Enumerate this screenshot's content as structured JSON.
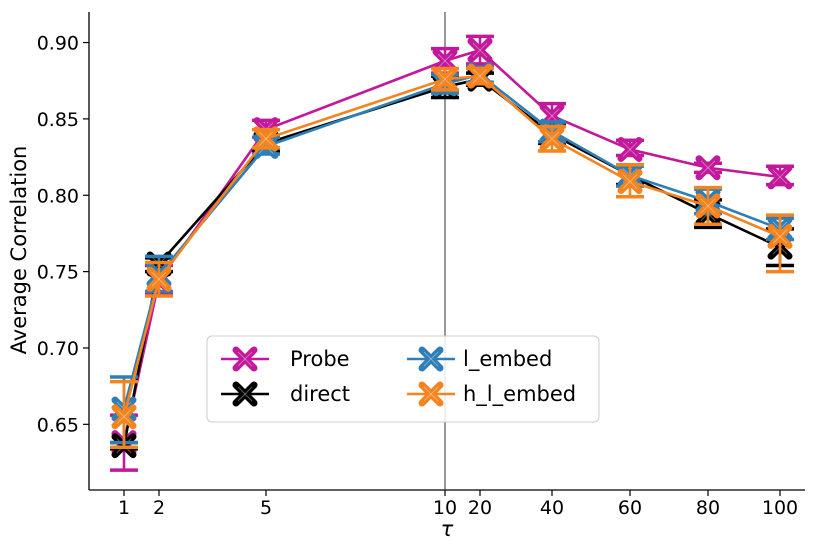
{
  "chart_data": {
    "type": "line",
    "title": "",
    "xlabel": "τ",
    "ylabel": "Average Correlation",
    "ylim": [
      0.607,
      0.92
    ],
    "x_ticks": [
      "1",
      "2",
      "5",
      "10",
      "20",
      "40",
      "60",
      "80",
      "100"
    ],
    "y_ticks": [
      0.65,
      0.7,
      0.75,
      0.8,
      0.85,
      0.9
    ],
    "y_tick_labels": [
      "0.65",
      "0.70",
      "0.75",
      "0.80",
      "0.85",
      "0.90"
    ],
    "vertical_divider_after": "10",
    "legend_position": "lower-center",
    "series": [
      {
        "name": "Probe",
        "color": "#c2189b",
        "values": [
          0.638,
          0.744,
          0.843,
          0.888,
          0.895,
          0.852,
          0.83,
          0.818,
          0.812
        ],
        "err_low": [
          0.62,
          0.735,
          0.838,
          0.88,
          0.886,
          0.845,
          0.826,
          0.815,
          0.807
        ],
        "err_high": [
          0.656,
          0.754,
          0.849,
          0.896,
          0.904,
          0.86,
          0.836,
          0.821,
          0.819
        ]
      },
      {
        "name": "direct",
        "color": "#000000",
        "values": [
          0.636,
          0.755,
          0.834,
          0.871,
          0.876,
          0.84,
          0.813,
          0.788,
          0.766
        ],
        "err_low": [
          0.634,
          0.75,
          0.829,
          0.864,
          0.872,
          0.834,
          0.807,
          0.779,
          0.754
        ],
        "err_high": [
          0.638,
          0.759,
          0.838,
          0.878,
          0.88,
          0.846,
          0.819,
          0.797,
          0.778
        ]
      },
      {
        "name": "l_embed",
        "color": "#2f7fb6",
        "values": [
          0.66,
          0.748,
          0.832,
          0.873,
          0.879,
          0.842,
          0.813,
          0.796,
          0.778
        ],
        "err_low": [
          0.638,
          0.737,
          0.827,
          0.867,
          0.874,
          0.835,
          0.806,
          0.788,
          0.771
        ],
        "err_high": [
          0.681,
          0.76,
          0.838,
          0.879,
          0.884,
          0.848,
          0.819,
          0.804,
          0.785
        ]
      },
      {
        "name": "h_l_embed",
        "color": "#f5841f",
        "values": [
          0.655,
          0.745,
          0.837,
          0.876,
          0.878,
          0.837,
          0.809,
          0.793,
          0.773
        ],
        "err_low": [
          0.635,
          0.734,
          0.831,
          0.869,
          0.873,
          0.829,
          0.799,
          0.781,
          0.75
        ],
        "err_high": [
          0.678,
          0.756,
          0.843,
          0.883,
          0.883,
          0.845,
          0.82,
          0.805,
          0.787
        ]
      }
    ]
  }
}
